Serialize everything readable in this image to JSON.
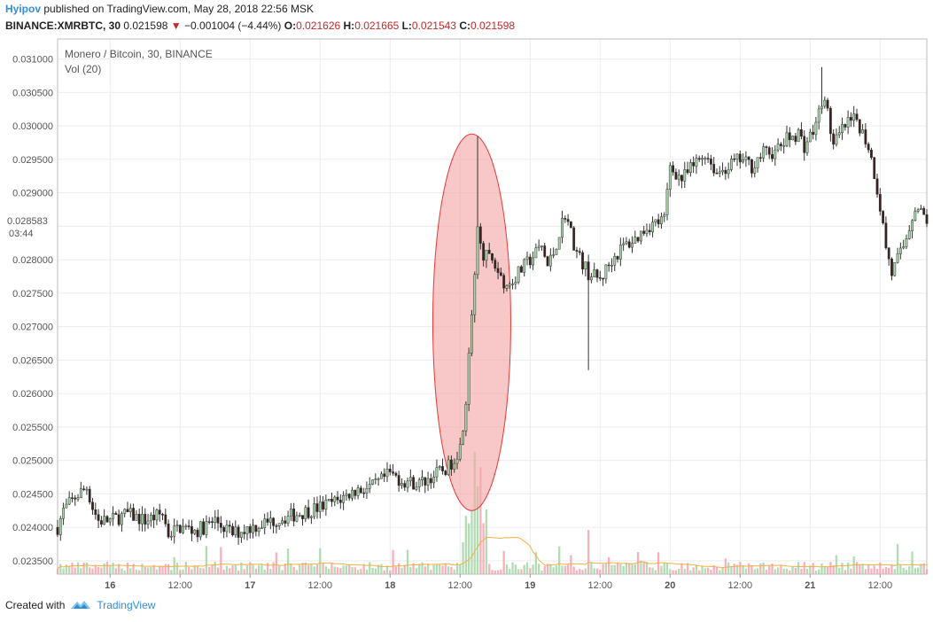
{
  "header": {
    "author": "Hyipov",
    "published_text": "published on TradingView.com, May 28, 2018 22:56 MSK",
    "symbol": "BINANCE:XMRBTC, 30",
    "last_price": "0.021598",
    "change": "−0.001004 (−4.44%)",
    "o_label": "O:",
    "o_value": "0.021626",
    "h_label": "H:",
    "h_value": "0.021665",
    "l_label": "L:",
    "l_value": "0.021543",
    "c_label": "C:",
    "c_value": "0.021598"
  },
  "legend": {
    "title": "Monero / Bitcoin, 30, BINANCE",
    "volume": "Vol (20)"
  },
  "footer": {
    "created_with": "Created with",
    "brand": "TradingView"
  },
  "colors": {
    "up": "#a5d6a7",
    "down": "#3a1f1f",
    "vol_up": "#a5d6a7",
    "vol_down": "#f4a5b0",
    "vol_ma": "#f5b041",
    "highlight_fill": "#f5a9a9",
    "highlight_stroke": "#e53935",
    "grid": "#ececec",
    "axis": "#555555",
    "brand": "#2f8fd6"
  },
  "chart_data": {
    "type": "candlestick",
    "title": "Monero / Bitcoin, 30, BINANCE",
    "ylim": [
      0.0233,
      0.0313
    ],
    "y_ticks": [
      "0.031000",
      "0.030500",
      "0.030000",
      "0.029500",
      "0.029000",
      "0.028500",
      "0.028000",
      "0.027500",
      "0.027000",
      "0.026500",
      "0.026000",
      "0.025500",
      "0.025000",
      "0.024500",
      "0.024000",
      "0.023500"
    ],
    "y_tick_values": [
      0.031,
      0.0305,
      0.03,
      0.0295,
      0.029,
      0.0285,
      0.028,
      0.0275,
      0.027,
      0.0265,
      0.026,
      0.0255,
      0.025,
      0.0245,
      0.024,
      0.0235
    ],
    "x_ticks": [
      "16",
      "12:00",
      "17",
      "12:00",
      "18",
      "12:00",
      "19",
      "12:00",
      "20",
      "12:00",
      "21",
      "12:00"
    ],
    "x_tick_hours": [
      0,
      12,
      24,
      36,
      48,
      60,
      72,
      84,
      96,
      108,
      120,
      132
    ],
    "x_range_hours": [
      -9,
      140
    ],
    "price_marker": {
      "value": "0.028583",
      "time": "03:44",
      "y": 0.028583
    },
    "grid": true,
    "legend_position": "top-left",
    "close_path": [
      [
        -9,
        0.024
      ],
      [
        -8,
        0.02425
      ],
      [
        -6,
        0.02445
      ],
      [
        -4,
        0.0246
      ],
      [
        -3,
        0.0243
      ],
      [
        -2,
        0.0241
      ],
      [
        0,
        0.0241
      ],
      [
        3,
        0.0242
      ],
      [
        6,
        0.0241
      ],
      [
        9,
        0.0242
      ],
      [
        10,
        0.0239
      ],
      [
        12,
        0.024
      ],
      [
        15,
        0.02395
      ],
      [
        18,
        0.0241
      ],
      [
        21,
        0.0239
      ],
      [
        24,
        0.024
      ],
      [
        28,
        0.0241
      ],
      [
        32,
        0.0242
      ],
      [
        36,
        0.0243
      ],
      [
        39,
        0.0244
      ],
      [
        42,
        0.02455
      ],
      [
        45,
        0.0246
      ],
      [
        48,
        0.0248
      ],
      [
        50,
        0.0247
      ],
      [
        53,
        0.02465
      ],
      [
        56,
        0.0248
      ],
      [
        58,
        0.0249
      ],
      [
        60,
        0.0252
      ],
      [
        61,
        0.0259
      ],
      [
        62,
        0.0272
      ],
      [
        63,
        0.0284
      ],
      [
        64,
        0.0281
      ],
      [
        66,
        0.0279
      ],
      [
        68,
        0.0276
      ],
      [
        70,
        0.0278
      ],
      [
        72,
        0.028
      ],
      [
        74,
        0.0282
      ],
      [
        75,
        0.0279
      ],
      [
        76,
        0.0281
      ],
      [
        78,
        0.0287
      ],
      [
        80,
        0.0281
      ],
      [
        82,
        0.0278
      ],
      [
        84,
        0.0277
      ],
      [
        86,
        0.028
      ],
      [
        88,
        0.0282
      ],
      [
        90,
        0.0283
      ],
      [
        92,
        0.0285
      ],
      [
        95,
        0.0286
      ],
      [
        96,
        0.0294
      ],
      [
        98,
        0.0292
      ],
      [
        100,
        0.0294
      ],
      [
        102,
        0.0296
      ],
      [
        104,
        0.0293
      ],
      [
        106,
        0.0294
      ],
      [
        108,
        0.0295
      ],
      [
        110,
        0.0294
      ],
      [
        112,
        0.0296
      ],
      [
        114,
        0.0296
      ],
      [
        116,
        0.0298
      ],
      [
        118,
        0.0299
      ],
      [
        119,
        0.0297
      ],
      [
        121,
        0.03
      ],
      [
        122,
        0.0304
      ],
      [
        123,
        0.0302
      ],
      [
        124,
        0.0297
      ],
      [
        126,
        0.03
      ],
      [
        128,
        0.0301
      ],
      [
        130,
        0.0297
      ],
      [
        131,
        0.0293
      ],
      [
        132,
        0.0288
      ],
      [
        133,
        0.0282
      ],
      [
        134,
        0.0278
      ],
      [
        136,
        0.0282
      ],
      [
        138,
        0.0288
      ],
      [
        139,
        0.0287
      ],
      [
        140,
        0.0286
      ]
    ],
    "highlight_spikes": [
      {
        "hour": 63,
        "high": 0.02985
      },
      {
        "hour": 82,
        "low": 0.02635
      },
      {
        "hour": 122,
        "high": 0.03088
      }
    ],
    "volume_spike_hours": [
      61,
      62,
      63,
      64
    ]
  }
}
